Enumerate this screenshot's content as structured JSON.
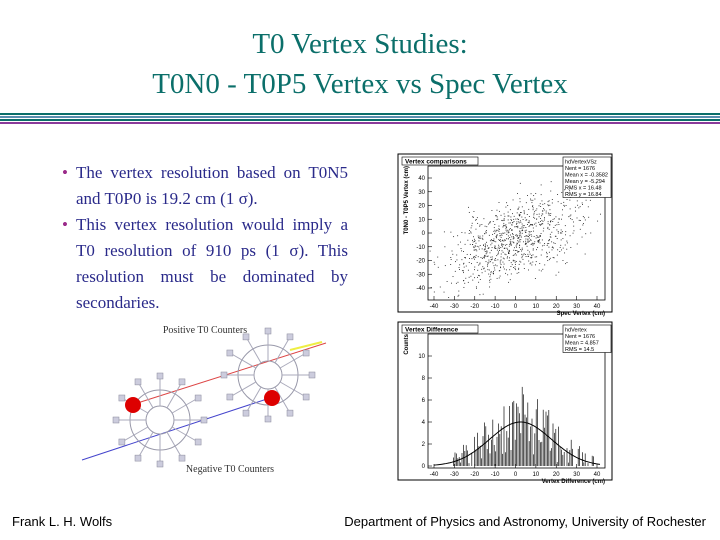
{
  "title": {
    "line1": "T0 Vertex Studies:",
    "line2": "T0N0 - T0P5 Vertex vs Spec Vertex"
  },
  "bullets": [
    "The vertex resolution based on T0N5 and T0P0 is 19.2 cm (1 σ).",
    "This vertex resolution would imply a T0 resolution of 910 ps (1 σ).  This resolution must be dominated by secondaries."
  ],
  "diagram": {
    "positive_label": "Positive T0 Counters",
    "negative_label": "Negative T0 Counters"
  },
  "plots": [
    {
      "title": "Vertex comparisons",
      "stats_name": "hdVertexVSz",
      "stats": [
        "Nent = 1676",
        "Mean x = -0.3582",
        "Mean y = -5.294",
        "RMS x = 16.48",
        "RMS y = 16.84"
      ],
      "y_label": "T0N0 - T0P5 Vertex (cm)",
      "x_label": "Spec Vertex (cm)",
      "x_ticks": [
        "-40",
        "-30",
        "-20",
        "-10",
        "0",
        "10",
        "20",
        "30",
        "40"
      ],
      "y_ticks": [
        "40",
        "30",
        "20",
        "10",
        "0",
        "-10",
        "-20",
        "-30",
        "-40"
      ]
    },
    {
      "title": "Vertex Difference",
      "stats_name": "hdVertex",
      "stats": [
        "Nent = 1676",
        "Mean = 4.857",
        "RMS = 14.5"
      ],
      "y_label": "Counts",
      "x_label": "Vertex Difference (cm)",
      "x_ticks": [
        "-40",
        "-30",
        "-20",
        "-10",
        "0",
        "10",
        "20",
        "30",
        "40"
      ],
      "y_ticks": [
        "10",
        "8",
        "6",
        "4",
        "2",
        "0"
      ]
    }
  ],
  "footer": {
    "left": "Frank L. H. Wolfs",
    "right": "Department of Physics and Astronomy, University of Rochester"
  }
}
